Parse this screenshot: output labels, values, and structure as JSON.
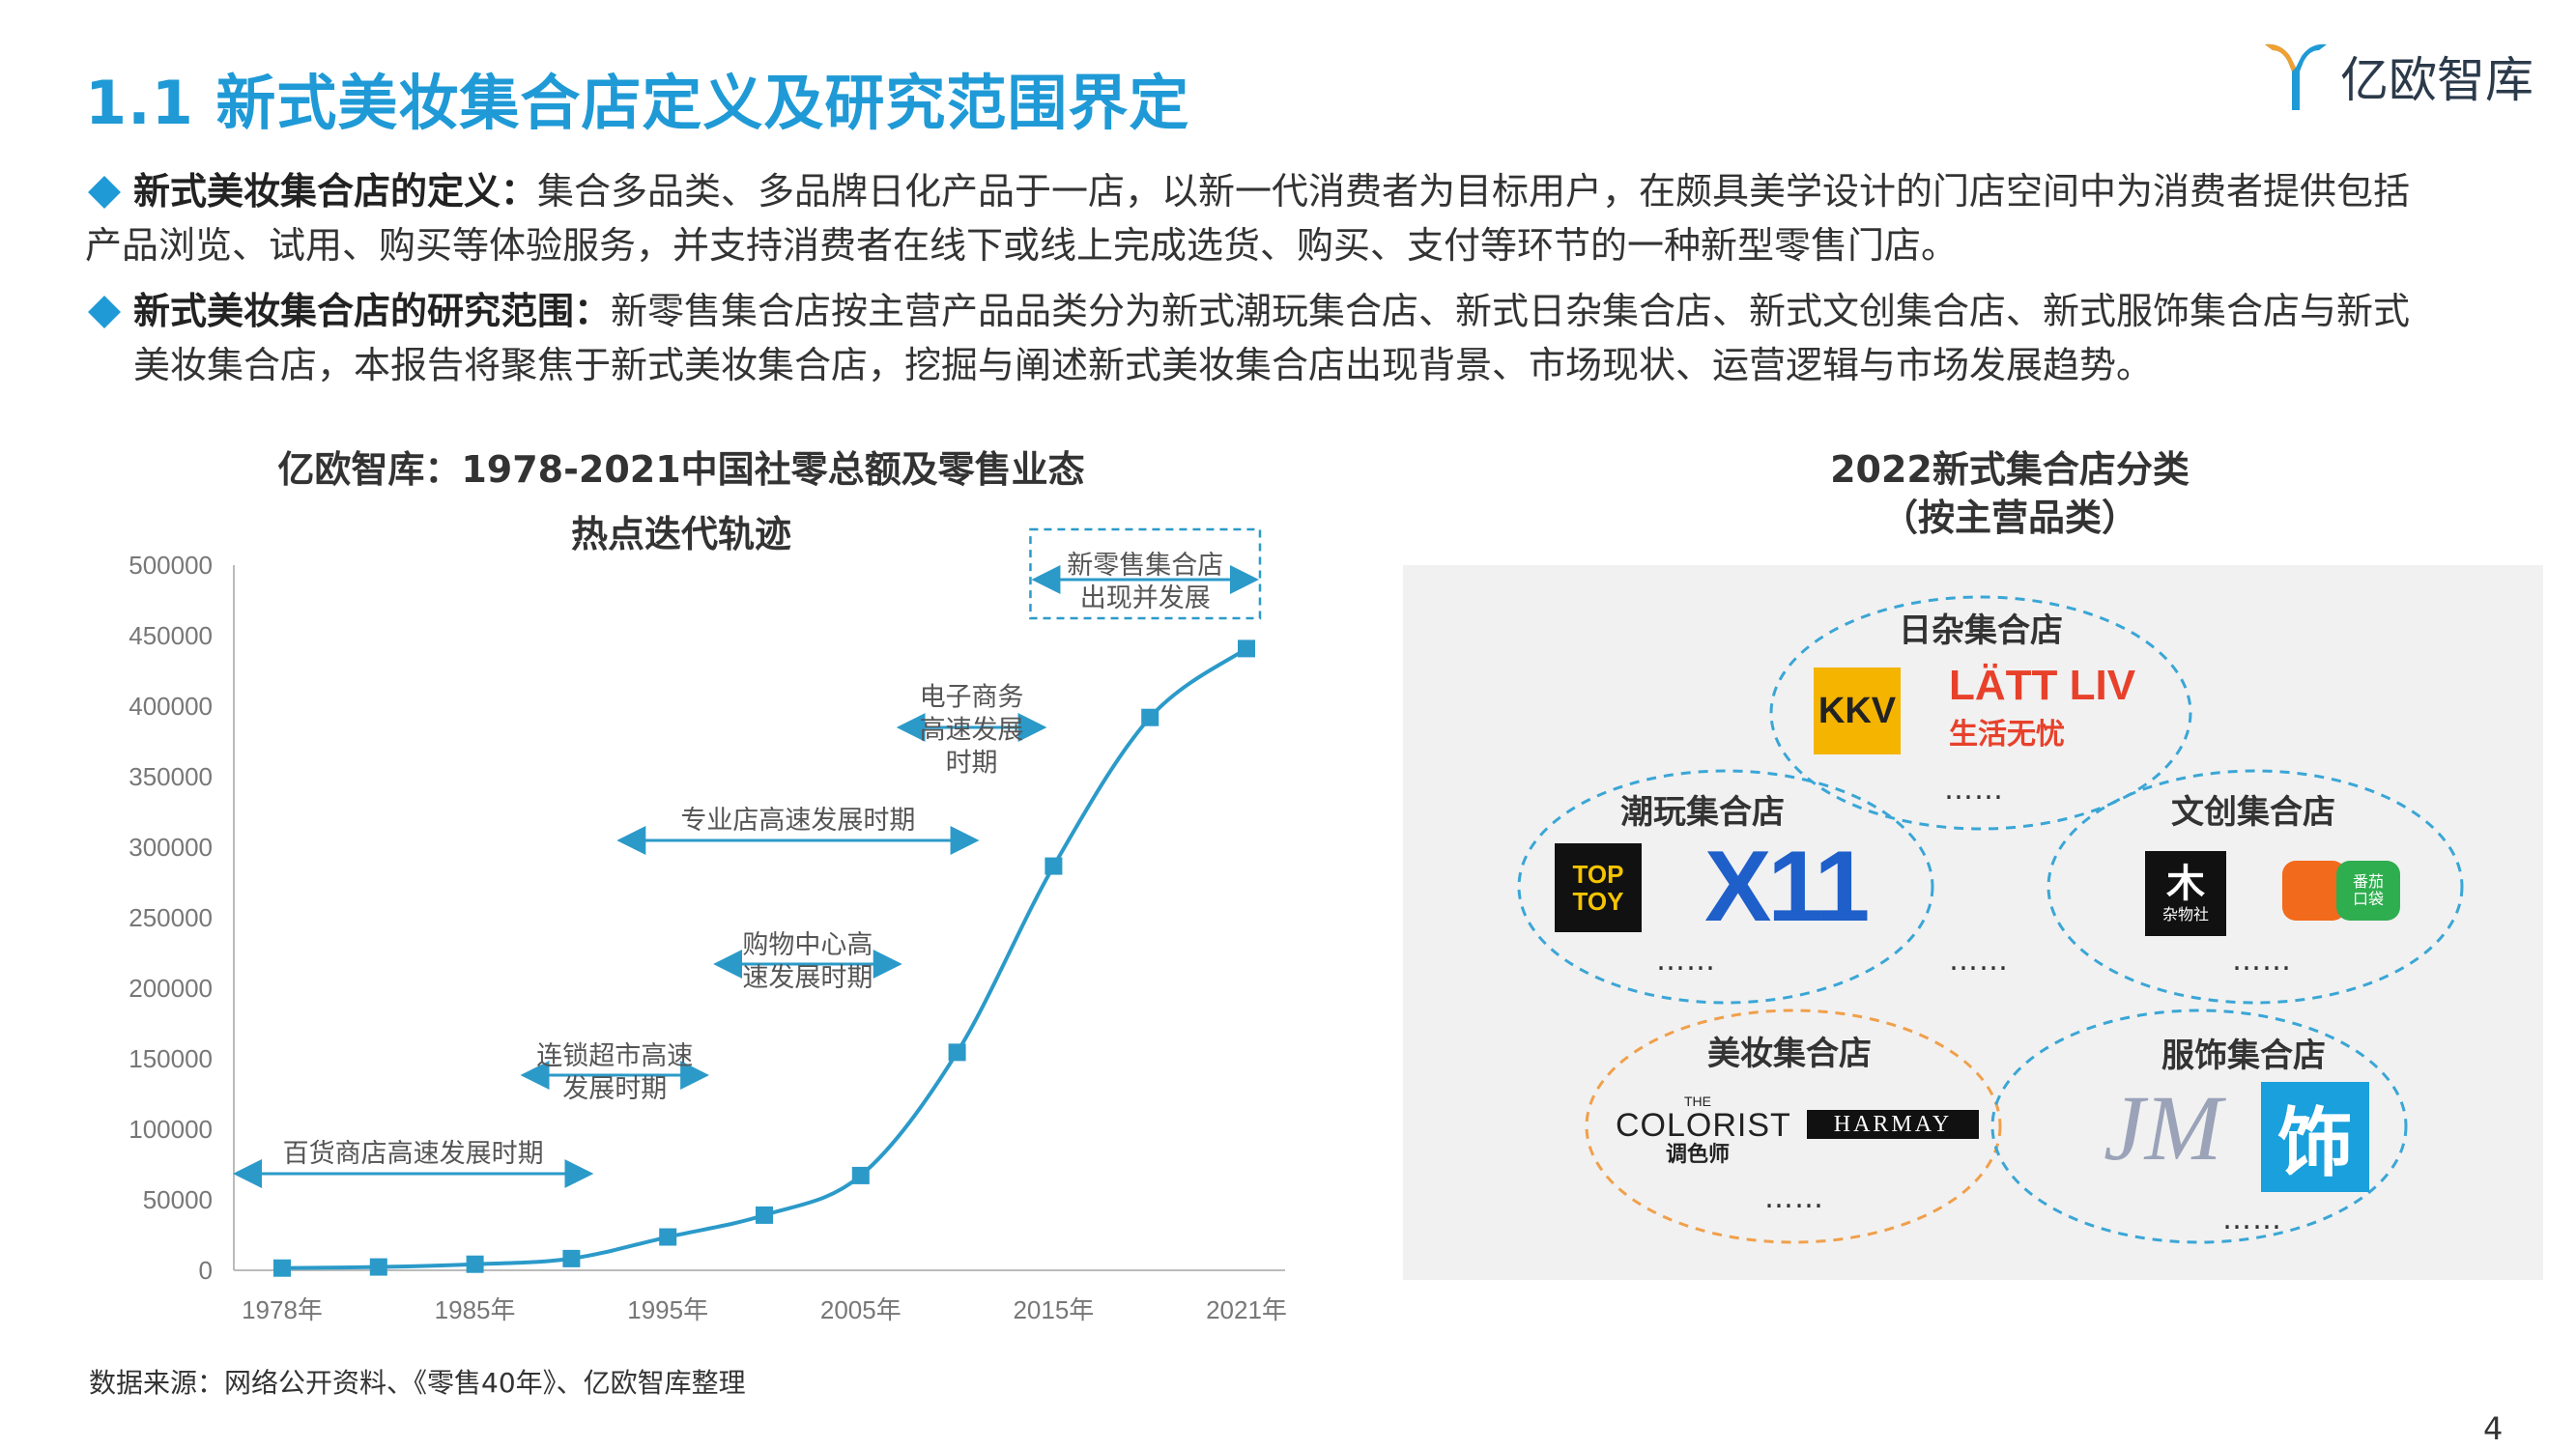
{
  "page": {
    "title": "1.1 新式美妆集合店定义及研究范围界定",
    "logo_text": "亿欧智库",
    "page_number": "4",
    "source": "数据来源：网络公开资料、《零售40年》、亿欧智库整理"
  },
  "bullets": [
    {
      "heading": "新式美妆集合店的定义：",
      "line1": "集合多品类、多品牌日化产品于一店，以新一代消费者为目标用户，在颇具美学设计的门店空间中为消费者提供包括",
      "line2": "产品浏览、试用、购买等体验服务，并支持消费者在线下或线上完成选货、购买、支付等环节的一种新型零售门店。"
    },
    {
      "heading": "新式美妆集合店的研究范围：",
      "line1": "新零售集合店按主营产品品类分为新式潮玩集合店、新式日杂集合店、新式文创集合店、新式服饰集合店与新式",
      "line2": "美妆集合店，本报告将聚焦于新式美妆集合店，挖掘与阐述新式美妆集合店出现背景、市场现状、运营逻辑与市场发展趋势。"
    }
  ],
  "left_chart": {
    "title_line1": "亿欧智库：1978-2021中国社零总额及零售业态",
    "title_line2": "热点迭代轨迹"
  },
  "chart_data": {
    "type": "line",
    "x_tick_labels": [
      "1978年",
      "1985年",
      "1995年",
      "2005年",
      "2015年",
      "2021年"
    ],
    "y_ticks": [
      0,
      50000,
      100000,
      150000,
      200000,
      250000,
      300000,
      350000,
      400000,
      450000,
      500000
    ],
    "ylim": [
      0,
      500000
    ],
    "series": [
      {
        "values": [
          1559,
          2350,
          4305,
          8300,
          23614,
          39106,
          67177,
          154554,
          286588,
          391981,
          440823
        ]
      }
    ],
    "annotations": [
      {
        "text_lines": [
          "百货商店高速发展时期"
        ],
        "from_index": 0,
        "to_index": 3.2
      },
      {
        "text_lines": [
          "连锁超市高速",
          "发展时期"
        ],
        "from_index": 2.5,
        "to_index": 4.4
      },
      {
        "text_lines": [
          "购物中心高",
          "速发展时期"
        ],
        "from_index": 4.5,
        "to_index": 6.4
      },
      {
        "text_lines": [
          "专业店高速发展时期"
        ],
        "from_index": 3.5,
        "to_index": 7.2
      },
      {
        "text_lines": [
          "电子商务",
          "高速发展",
          "时期"
        ],
        "from_index": 6.4,
        "to_index": 7.9
      },
      {
        "text_lines": [
          "新零售集合店",
          "出现并发展"
        ],
        "from_index": 7.8,
        "to_index": 10.1
      }
    ],
    "grid": false,
    "color": "#2b9ac9"
  },
  "right_panel": {
    "title_line1": "2022新式集合店分类",
    "title_line2": "（按主营品类）",
    "categories": [
      {
        "label": "日杂集合店",
        "brands": [
          "KKV",
          "LÄTT LIV",
          "生活无忧"
        ],
        "ellipsis": "……"
      },
      {
        "label": "潮玩集合店",
        "brands": [
          "TOP TOY",
          "X11"
        ],
        "ellipsis": "……"
      },
      {
        "label": "文创集合店",
        "brands": [
          "杂物社",
          "番茄口袋"
        ],
        "ellipsis": "……"
      },
      {
        "label": "美妆集合店",
        "brands": [
          "THE COLORIST 调色师",
          "HARMAY"
        ],
        "ellipsis": "……"
      },
      {
        "label": "服饰集合店",
        "brands": [
          "JM",
          "饰"
        ],
        "ellipsis": "……"
      }
    ],
    "center_ellipsis": "……",
    "logo_texts": {
      "kkv": "KKV",
      "latt": "LÄTT LIV",
      "latt_cn": "生活无忧",
      "toptoy_1": "TOP",
      "toptoy_2": "TOY",
      "x11": "X11",
      "zawu_big": "木",
      "zawu_cn": "杂物社",
      "fanqie_cn": "番茄口袋",
      "colorist_the": "THE",
      "colorist": "COLORIST",
      "colorist_cn": "调色师",
      "harmay": "HARMAY",
      "jm": "JM",
      "shi": "饰"
    },
    "colors": {
      "blue_ring": "#3aa6d6",
      "orange_ring": "#f0a04b",
      "panel_bg": "#f1f1f1"
    }
  }
}
